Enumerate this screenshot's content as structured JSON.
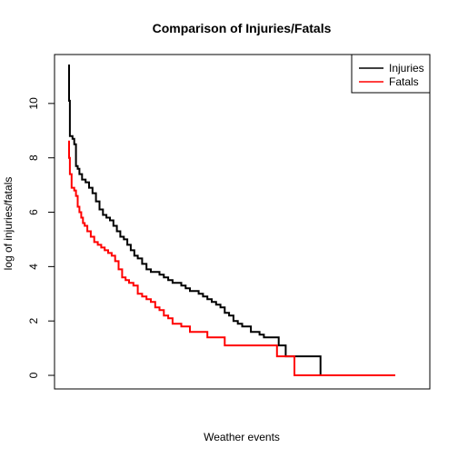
{
  "chart_data": {
    "type": "line",
    "title": "Comparison of Injuries/Fatals",
    "xlabel": "Weather events",
    "ylabel": "log of injuries/fatals",
    "xlim": [
      0,
      400
    ],
    "ylim": [
      -0.5,
      11.8
    ],
    "yticks": [
      0,
      2,
      4,
      6,
      8,
      10
    ],
    "legend_position": "top-right",
    "series": [
      {
        "name": "Injuries",
        "color": "#000000",
        "step": true,
        "x": [
          0,
          1,
          2,
          3,
          5,
          7,
          9,
          11,
          13,
          16,
          20,
          24,
          28,
          32,
          36,
          40,
          44,
          48,
          52,
          56,
          60,
          64,
          68,
          72,
          76,
          80,
          85,
          90,
          95,
          100,
          105,
          110,
          115,
          120,
          125,
          130,
          135,
          140,
          145,
          150,
          155,
          160,
          165,
          170,
          175,
          180,
          185,
          190,
          195,
          200,
          205,
          210,
          215,
          220,
          225,
          230,
          236,
          242,
          246,
          250,
          256,
          262,
          268,
          274,
          282,
          290,
          295,
          362
        ],
        "values": [
          11.4,
          10.1,
          8.8,
          8.8,
          8.7,
          8.5,
          7.7,
          7.6,
          7.4,
          7.2,
          7.1,
          6.9,
          6.7,
          6.4,
          6.1,
          5.9,
          5.8,
          5.7,
          5.5,
          5.3,
          5.1,
          5.0,
          4.8,
          4.6,
          4.4,
          4.3,
          4.1,
          3.9,
          3.8,
          3.8,
          3.7,
          3.6,
          3.5,
          3.4,
          3.4,
          3.3,
          3.2,
          3.1,
          3.1,
          3.0,
          2.9,
          2.8,
          2.7,
          2.6,
          2.5,
          2.3,
          2.2,
          2.0,
          1.9,
          1.8,
          1.8,
          1.6,
          1.6,
          1.5,
          1.4,
          1.4,
          1.4,
          1.1,
          1.1,
          0.7,
          0.7,
          0.7,
          0.7,
          0.7,
          0.7,
          0.0,
          0.0,
          0.0
        ]
      },
      {
        "name": "Fatals",
        "color": "#ff0000",
        "step": true,
        "x": [
          0,
          1,
          2,
          4,
          7,
          9,
          11,
          13,
          15,
          17,
          19,
          22,
          26,
          30,
          34,
          38,
          42,
          46,
          50,
          54,
          58,
          62,
          66,
          70,
          75,
          80,
          85,
          90,
          95,
          100,
          105,
          110,
          115,
          120,
          125,
          130,
          140,
          150,
          155,
          160,
          165,
          170,
          180,
          190,
          200,
          210,
          220,
          230,
          240,
          250,
          260,
          272,
          280,
          290,
          300,
          310,
          320,
          330,
          340,
          350,
          360,
          372,
          376
        ],
        "values": [
          8.6,
          8.0,
          7.4,
          6.9,
          6.8,
          6.6,
          6.2,
          6.0,
          5.8,
          5.6,
          5.5,
          5.3,
          5.1,
          4.9,
          4.8,
          4.7,
          4.6,
          4.5,
          4.4,
          4.2,
          3.9,
          3.6,
          3.5,
          3.4,
          3.3,
          3.0,
          2.9,
          2.8,
          2.7,
          2.5,
          2.4,
          2.2,
          2.1,
          1.9,
          1.9,
          1.8,
          1.6,
          1.6,
          1.6,
          1.4,
          1.4,
          1.4,
          1.1,
          1.1,
          1.1,
          1.1,
          1.1,
          1.1,
          0.7,
          0.7,
          0.0,
          0.0,
          0.0,
          0.0,
          0.0,
          0.0,
          0.0,
          0.0,
          0.0,
          0.0,
          0.0,
          0.0,
          0.0
        ]
      }
    ]
  }
}
